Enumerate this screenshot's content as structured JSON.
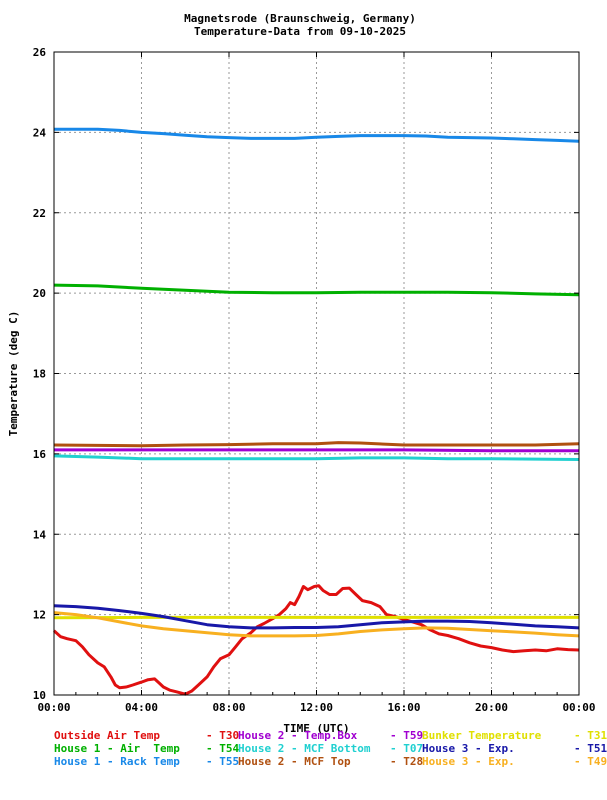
{
  "chart_data": {
    "type": "line",
    "title": "Magnetsrode (Braunschweig, Germany)",
    "subtitle": "Temperature-Data from 09-10-2025",
    "xlabel": "TIME (UTC)",
    "ylabel": "Temperature (deg C)",
    "xlim": [
      0,
      24
    ],
    "ylim": [
      10,
      26
    ],
    "x_ticks": [
      "00:00",
      "04:00",
      "08:00",
      "12:00",
      "16:00",
      "20:00",
      "00:00"
    ],
    "y_ticks": [
      "10",
      "12",
      "14",
      "16",
      "18",
      "20",
      "22",
      "24",
      "26"
    ],
    "grid": true,
    "legend_position": "bottom",
    "series": [
      {
        "name": "Outside Air Temp",
        "code": "T30",
        "color": "#e01010",
        "points": [
          [
            0,
            11.6
          ],
          [
            0.3,
            11.45
          ],
          [
            0.6,
            11.4
          ],
          [
            1.0,
            11.35
          ],
          [
            1.3,
            11.2
          ],
          [
            1.6,
            11.0
          ],
          [
            2.0,
            10.8
          ],
          [
            2.3,
            10.7
          ],
          [
            2.6,
            10.45
          ],
          [
            2.8,
            10.25
          ],
          [
            3.0,
            10.18
          ],
          [
            3.3,
            10.2
          ],
          [
            3.6,
            10.25
          ],
          [
            4.0,
            10.32
          ],
          [
            4.3,
            10.38
          ],
          [
            4.6,
            10.4
          ],
          [
            4.8,
            10.3
          ],
          [
            5.0,
            10.2
          ],
          [
            5.3,
            10.12
          ],
          [
            5.6,
            10.08
          ],
          [
            6.0,
            10.02
          ],
          [
            6.3,
            10.1
          ],
          [
            6.6,
            10.25
          ],
          [
            7.0,
            10.45
          ],
          [
            7.3,
            10.7
          ],
          [
            7.6,
            10.9
          ],
          [
            8.0,
            11.0
          ],
          [
            8.3,
            11.2
          ],
          [
            8.6,
            11.4
          ],
          [
            9.0,
            11.55
          ],
          [
            9.3,
            11.7
          ],
          [
            9.6,
            11.78
          ],
          [
            10.0,
            11.9
          ],
          [
            10.3,
            12.0
          ],
          [
            10.6,
            12.15
          ],
          [
            10.8,
            12.3
          ],
          [
            11.0,
            12.25
          ],
          [
            11.2,
            12.45
          ],
          [
            11.4,
            12.7
          ],
          [
            11.6,
            12.62
          ],
          [
            11.9,
            12.7
          ],
          [
            12.1,
            12.72
          ],
          [
            12.3,
            12.6
          ],
          [
            12.6,
            12.5
          ],
          [
            12.9,
            12.5
          ],
          [
            13.2,
            12.65
          ],
          [
            13.5,
            12.66
          ],
          [
            13.8,
            12.5
          ],
          [
            14.1,
            12.35
          ],
          [
            14.5,
            12.3
          ],
          [
            14.9,
            12.2
          ],
          [
            15.2,
            12.0
          ],
          [
            15.6,
            11.95
          ],
          [
            16.0,
            11.88
          ],
          [
            16.4,
            11.82
          ],
          [
            16.8,
            11.75
          ],
          [
            17.2,
            11.62
          ],
          [
            17.6,
            11.52
          ],
          [
            18.0,
            11.48
          ],
          [
            18.5,
            11.4
          ],
          [
            19.0,
            11.3
          ],
          [
            19.5,
            11.22
          ],
          [
            20.0,
            11.18
          ],
          [
            20.5,
            11.12
          ],
          [
            21.0,
            11.08
          ],
          [
            21.5,
            11.1
          ],
          [
            22.0,
            11.12
          ],
          [
            22.5,
            11.1
          ],
          [
            23.0,
            11.15
          ],
          [
            23.5,
            11.13
          ],
          [
            24.0,
            11.12
          ]
        ]
      },
      {
        "name": "House 2 - Temp.Box",
        "code": "T59",
        "color": "#a000d0",
        "points": [
          [
            0,
            16.1
          ],
          [
            4,
            16.1
          ],
          [
            8,
            16.1
          ],
          [
            12,
            16.1
          ],
          [
            16,
            16.1
          ],
          [
            20,
            16.08
          ],
          [
            24,
            16.08
          ]
        ]
      },
      {
        "name": "Bunker Temperature",
        "code": "T31",
        "color": "#e0e000",
        "points": [
          [
            0,
            11.92
          ],
          [
            4,
            11.93
          ],
          [
            8,
            11.93
          ],
          [
            12,
            11.93
          ],
          [
            16,
            11.93
          ],
          [
            20,
            11.93
          ],
          [
            24,
            11.93
          ]
        ]
      },
      {
        "name": "House 1 - Air  Temp",
        "code": "T54",
        "color": "#00b000",
        "points": [
          [
            0,
            20.2
          ],
          [
            2,
            20.18
          ],
          [
            4,
            20.12
          ],
          [
            6,
            20.07
          ],
          [
            8,
            20.02
          ],
          [
            10,
            20.01
          ],
          [
            12,
            20.01
          ],
          [
            14,
            20.02
          ],
          [
            16,
            20.02
          ],
          [
            18,
            20.02
          ],
          [
            20,
            20.01
          ],
          [
            22,
            19.98
          ],
          [
            24,
            19.96
          ]
        ]
      },
      {
        "name": "House 2 - MCF Bottom",
        "code": "T07",
        "color": "#20d0d0",
        "points": [
          [
            0,
            15.95
          ],
          [
            2,
            15.92
          ],
          [
            4,
            15.88
          ],
          [
            6,
            15.88
          ],
          [
            8,
            15.88
          ],
          [
            10,
            15.88
          ],
          [
            12,
            15.88
          ],
          [
            14,
            15.9
          ],
          [
            16,
            15.9
          ],
          [
            18,
            15.88
          ],
          [
            20,
            15.88
          ],
          [
            22,
            15.87
          ],
          [
            24,
            15.86
          ]
        ]
      },
      {
        "name": "House 3 - Exp.",
        "code": "T51",
        "color": "#1818a8",
        "points": [
          [
            0,
            12.22
          ],
          [
            1,
            12.2
          ],
          [
            2,
            12.16
          ],
          [
            3,
            12.1
          ],
          [
            4,
            12.03
          ],
          [
            5,
            11.95
          ],
          [
            6,
            11.85
          ],
          [
            7,
            11.75
          ],
          [
            8,
            11.7
          ],
          [
            9,
            11.67
          ],
          [
            10,
            11.67
          ],
          [
            11,
            11.68
          ],
          [
            12,
            11.68
          ],
          [
            13,
            11.7
          ],
          [
            14,
            11.75
          ],
          [
            15,
            11.8
          ],
          [
            16,
            11.82
          ],
          [
            17,
            11.84
          ],
          [
            18,
            11.84
          ],
          [
            19,
            11.83
          ],
          [
            20,
            11.8
          ],
          [
            21,
            11.76
          ],
          [
            22,
            11.72
          ],
          [
            23,
            11.7
          ],
          [
            24,
            11.67
          ]
        ]
      },
      {
        "name": "House 1 - Rack Temp",
        "code": "T55",
        "color": "#1888e8",
        "points": [
          [
            0,
            24.08
          ],
          [
            2,
            24.08
          ],
          [
            3,
            24.05
          ],
          [
            4,
            24.0
          ],
          [
            5,
            23.97
          ],
          [
            6,
            23.93
          ],
          [
            7,
            23.89
          ],
          [
            8,
            23.87
          ],
          [
            9,
            23.85
          ],
          [
            10,
            23.85
          ],
          [
            11,
            23.85
          ],
          [
            12,
            23.88
          ],
          [
            13,
            23.9
          ],
          [
            14,
            23.92
          ],
          [
            15,
            23.92
          ],
          [
            16,
            23.92
          ],
          [
            17,
            23.91
          ],
          [
            18,
            23.88
          ],
          [
            19,
            23.87
          ],
          [
            20,
            23.86
          ],
          [
            21,
            23.84
          ],
          [
            22,
            23.82
          ],
          [
            23,
            23.8
          ],
          [
            24,
            23.78
          ]
        ]
      },
      {
        "name": "House 2 - MCF Top",
        "code": "T28",
        "color": "#b05010",
        "points": [
          [
            0,
            16.22
          ],
          [
            2,
            16.21
          ],
          [
            4,
            16.2
          ],
          [
            6,
            16.22
          ],
          [
            8,
            16.23
          ],
          [
            10,
            16.25
          ],
          [
            12,
            16.25
          ],
          [
            13,
            16.28
          ],
          [
            14,
            16.27
          ],
          [
            16,
            16.22
          ],
          [
            18,
            16.22
          ],
          [
            20,
            16.22
          ],
          [
            22,
            16.22
          ],
          [
            24,
            16.25
          ]
        ]
      },
      {
        "name": "House 3 - Exp.",
        "code": "T49",
        "color": "#f8b020",
        "points": [
          [
            0,
            12.05
          ],
          [
            1,
            12.0
          ],
          [
            2,
            11.92
          ],
          [
            3,
            11.82
          ],
          [
            4,
            11.72
          ],
          [
            5,
            11.65
          ],
          [
            6,
            11.6
          ],
          [
            7,
            11.55
          ],
          [
            8,
            11.5
          ],
          [
            9,
            11.47
          ],
          [
            10,
            11.47
          ],
          [
            11,
            11.47
          ],
          [
            12,
            11.48
          ],
          [
            13,
            11.52
          ],
          [
            14,
            11.58
          ],
          [
            15,
            11.62
          ],
          [
            16,
            11.65
          ],
          [
            17,
            11.67
          ],
          [
            18,
            11.66
          ],
          [
            19,
            11.63
          ],
          [
            20,
            11.6
          ],
          [
            21,
            11.57
          ],
          [
            22,
            11.54
          ],
          [
            23,
            11.5
          ],
          [
            24,
            11.47
          ]
        ]
      }
    ]
  }
}
